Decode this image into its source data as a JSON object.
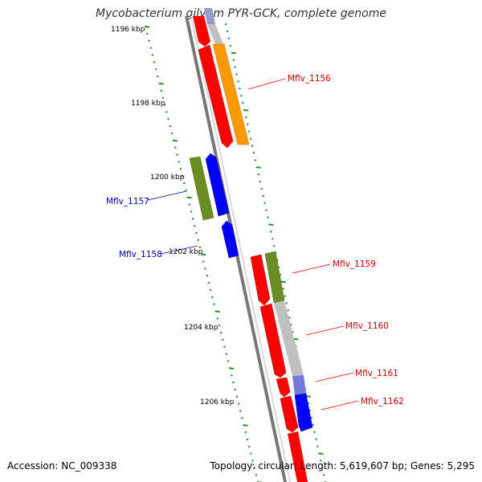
{
  "title": "Mycobacterium gilvum PYR-GCK, complete genome",
  "footer": {
    "accession": "Accession: NC_009338",
    "topology": "Topology: circular; Length: 5,619,607 bp; Genes: 5,295"
  },
  "colors": {
    "red": "#ff0000",
    "orange": "#ff9900",
    "gray": "#c0c0c0",
    "olive": "#6b8e23",
    "blue": "#0000ff",
    "tick_green": "#2e8b2e",
    "backbone": "#808080"
  },
  "kbp_labels": [
    "1196 kbp",
    "1198 kbp",
    "1200 kbp",
    "1202 kbp",
    "1204 kbp",
    "1206 kbp"
  ],
  "gene_labels": {
    "mflv_1156": "Mflv_1156",
    "mflv_1157": "Mflv_1157",
    "mflv_1158": "Mflv_1158",
    "mflv_1159": "Mflv_1159",
    "mflv_1160": "Mflv_1160",
    "mflv_1161": "Mflv_1161",
    "mflv_1162": "Mflv_1162"
  }
}
